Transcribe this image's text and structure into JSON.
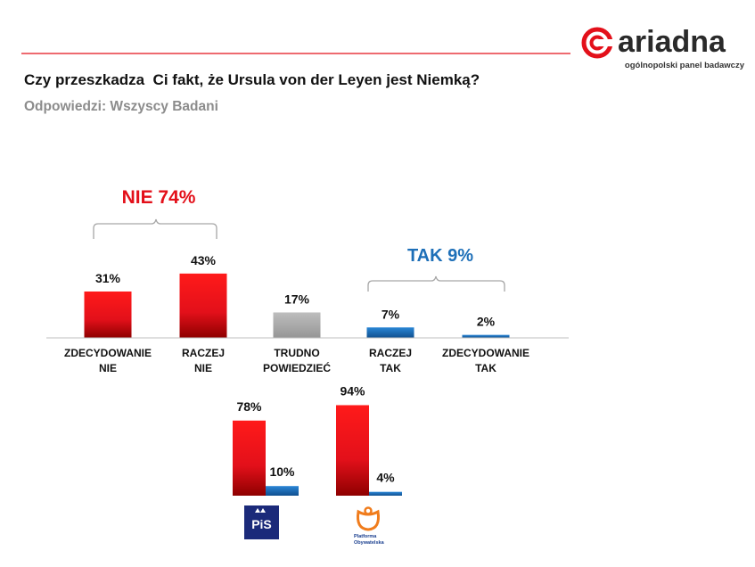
{
  "brand": {
    "name": "ariadna",
    "tagline": "ogólnopolski panel badawczy",
    "accent_color": "#e3101a",
    "icon": "ariadna-logo-icon"
  },
  "header": {
    "title": "Czy przeszkadza  Ci fakt, że Ursula von der Leyen jest Niemką?",
    "subtitle": "Odpowiedzi: Wszyscy Badani"
  },
  "chart_data": [
    {
      "type": "bar",
      "name": "main",
      "categories": [
        [
          "ZDECYDOWANIE",
          "NIE"
        ],
        [
          "RACZEJ",
          "NIE"
        ],
        [
          "TRUDNO",
          "POWIEDZIEĆ"
        ],
        [
          "RACZEJ",
          "TAK"
        ],
        [
          "ZDECYDOWANIE",
          "TAK"
        ]
      ],
      "values": [
        31,
        43,
        17,
        7,
        2
      ],
      "value_labels": [
        "31%",
        "43%",
        "17%",
        "7%",
        "2%"
      ],
      "colors": [
        "#e3101a",
        "#e3101a",
        "#a6a6a6",
        "#1d6fb8",
        "#1d6fb8"
      ],
      "ylim": [
        0,
        100
      ],
      "groups": [
        {
          "label": "NIE 74%",
          "value": 74,
          "covers": [
            0,
            1
          ],
          "color": "#e3101a"
        },
        {
          "label": "TAK 9%",
          "value": 9,
          "covers": [
            3,
            4
          ],
          "color": "#1d6fb8"
        }
      ]
    },
    {
      "type": "bar",
      "name": "by-party",
      "series_names": [
        "NIE",
        "TAK"
      ],
      "groups": [
        {
          "party": "PiS",
          "logo_text": "PiS",
          "values": [
            78,
            10
          ],
          "value_labels": [
            "78%",
            "10%"
          ]
        },
        {
          "party": "Platforma Obywatelska",
          "logo_text": [
            "Platforma",
            "Obywatelska"
          ],
          "values": [
            94,
            4
          ],
          "value_labels": [
            "94%",
            "4%"
          ]
        }
      ],
      "colors": [
        "#e3101a",
        "#1d6fb8"
      ],
      "ylim": [
        0,
        100
      ]
    }
  ]
}
